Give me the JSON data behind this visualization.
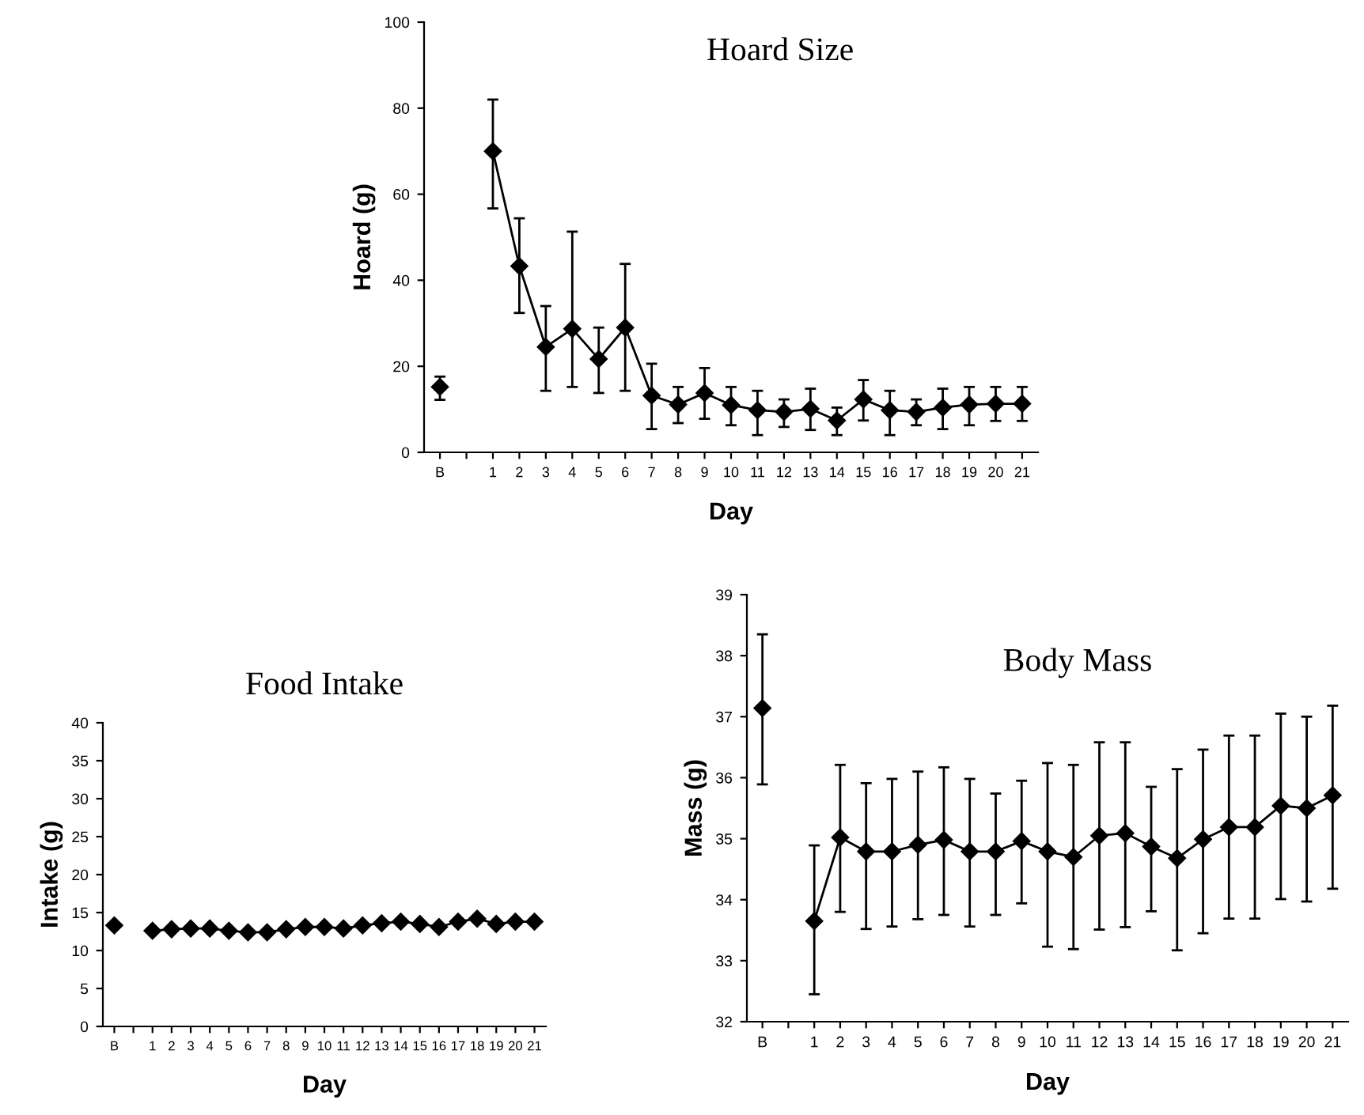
{
  "chart_data": [
    {
      "type": "line",
      "title": "Hoard Size",
      "xlabel": "Day",
      "ylabel": "Hoard (g)",
      "categories": [
        "B",
        null,
        "1",
        "2",
        "3",
        "4",
        "5",
        "6",
        "7",
        "8",
        "9",
        "10",
        "11",
        "12",
        "13",
        "14",
        "15",
        "16",
        "17",
        "18",
        "19",
        "20",
        "21"
      ],
      "series": [
        {
          "color": "#000000",
          "values": [
            15.2,
            null,
            70,
            43.3,
            24.5,
            28.7,
            21.7,
            29,
            13.2,
            11.1,
            13.8,
            11,
            9.8,
            9.4,
            10.1,
            7.4,
            12.3,
            9.8,
            9.4,
            10.4,
            11.1,
            11.3,
            11.3
          ],
          "errors": [
            [
              12.2,
              17.6
            ],
            null,
            [
              56.7,
              82
            ],
            [
              32.4,
              54.4
            ],
            [
              14.3,
              34
            ],
            [
              15.2,
              51.3
            ],
            [
              13.8,
              29
            ],
            [
              14.3,
              43.8
            ],
            [
              5.4,
              20.6
            ],
            [
              6.8,
              15.2
            ],
            [
              7.8,
              19.6
            ],
            [
              6.3,
              15.2
            ],
            [
              4,
              14.3
            ],
            [
              5.9,
              12.3
            ],
            [
              5.2,
              14.8
            ],
            [
              4,
              10.4
            ],
            [
              7.4,
              16.8
            ],
            [
              4,
              14.3
            ],
            [
              6.3,
              12.3
            ],
            [
              5.4,
              14.8
            ],
            [
              6.3,
              15.2
            ],
            [
              7.3,
              15.2
            ],
            [
              7.3,
              15.2
            ]
          ]
        }
      ],
      "ylim": [
        0,
        100
      ],
      "yticks": [
        0,
        20,
        40,
        60,
        80,
        100
      ],
      "marker": "diamond"
    },
    {
      "type": "line",
      "title": "Food Intake",
      "xlabel": "Day",
      "ylabel": "Intake (g)",
      "categories": [
        "B",
        null,
        "1",
        "2",
        "3",
        "4",
        "5",
        "6",
        "7",
        "8",
        "9",
        "10",
        "11",
        "12",
        "13",
        "14",
        "15",
        "16",
        "17",
        "18",
        "19",
        "20",
        "21"
      ],
      "series": [
        {
          "color": "#000000",
          "values": [
            13.3,
            null,
            12.6,
            12.8,
            12.9,
            12.9,
            12.6,
            12.4,
            12.4,
            12.8,
            13.1,
            13.1,
            12.9,
            13.3,
            13.6,
            13.8,
            13.5,
            13.1,
            13.8,
            14.2,
            13.5,
            13.8,
            13.8
          ]
        }
      ],
      "ylim": [
        0,
        40
      ],
      "yticks": [
        0,
        5,
        10,
        15,
        20,
        25,
        30,
        35,
        40
      ],
      "marker": "diamond"
    },
    {
      "type": "line",
      "title": "Body Mass",
      "xlabel": "Day",
      "ylabel": "Mass (g)",
      "categories": [
        "B",
        null,
        "1",
        "2",
        "3",
        "4",
        "5",
        "6",
        "7",
        "8",
        "9",
        "10",
        "11",
        "12",
        "13",
        "14",
        "15",
        "16",
        "17",
        "18",
        "19",
        "20",
        "21"
      ],
      "series": [
        {
          "color": "#000000",
          "values": [
            37.14,
            null,
            33.65,
            35.02,
            34.79,
            34.79,
            34.9,
            34.98,
            34.79,
            34.79,
            34.96,
            34.79,
            34.7,
            35.05,
            35.09,
            34.87,
            34.68,
            34.99,
            35.19,
            35.19,
            35.54,
            35.5,
            35.71
          ],
          "errors": [
            [
              35.89,
              38.35
            ],
            null,
            [
              32.45,
              34.89
            ],
            [
              33.8,
              36.21
            ],
            [
              33.52,
              35.91
            ],
            [
              33.56,
              35.98
            ],
            [
              33.68,
              36.1
            ],
            [
              33.75,
              36.17
            ],
            [
              33.56,
              35.98
            ],
            [
              33.75,
              35.74
            ],
            [
              33.94,
              35.95
            ],
            [
              33.23,
              36.24
            ],
            [
              33.19,
              36.21
            ],
            [
              33.51,
              36.58
            ],
            [
              33.55,
              36.58
            ],
            [
              33.81,
              35.85
            ],
            [
              33.17,
              36.14
            ],
            [
              33.45,
              36.46
            ],
            [
              33.69,
              36.69
            ],
            [
              33.69,
              36.69
            ],
            [
              34.01,
              37.05
            ],
            [
              33.97,
              37.0
            ],
            [
              34.18,
              37.18
            ]
          ]
        }
      ],
      "ylim": [
        32,
        39
      ],
      "yticks": [
        32,
        33,
        34,
        35,
        36,
        37,
        38,
        39
      ],
      "marker": "diamond"
    }
  ]
}
